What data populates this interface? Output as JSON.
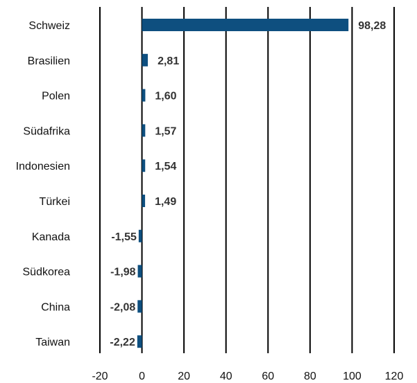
{
  "chart_data": {
    "type": "bar",
    "orientation": "horizontal",
    "categories": [
      "Schweiz",
      "Brasilien",
      "Polen",
      "Südafrika",
      "Indonesien",
      "Türkei",
      "Kanada",
      "Südkorea",
      "China",
      "Taiwan"
    ],
    "values": [
      98.28,
      2.81,
      1.6,
      1.57,
      1.54,
      1.49,
      -1.55,
      -1.98,
      -2.08,
      -2.22
    ],
    "value_labels": [
      "98,28",
      "2,81",
      "1,60",
      "1,57",
      "1,54",
      "1,49",
      "-1,55",
      "-1,98",
      "-2,08",
      "-2,22"
    ],
    "x_ticks": [
      -20,
      0,
      20,
      40,
      60,
      80,
      100,
      120
    ],
    "x_tick_labels": [
      "-20",
      "0",
      "20",
      "40",
      "60",
      "80",
      "100",
      "120"
    ],
    "xlim": [
      -20,
      120
    ],
    "grid": "vertical",
    "bar_color": "#0e4f7f",
    "grid_color": "#000000"
  }
}
